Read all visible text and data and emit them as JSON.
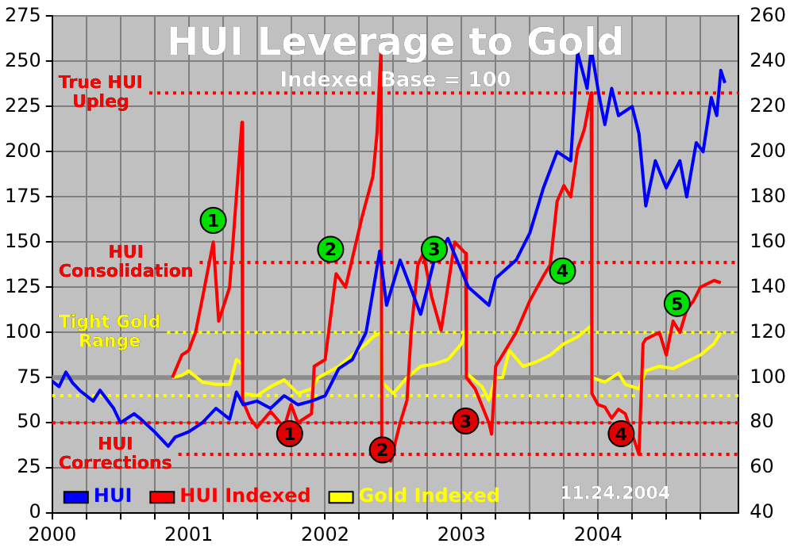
{
  "chart_data": {
    "type": "line",
    "title": "HUI Leverage to Gold",
    "subtitle": "Indexed Base = 100",
    "xlim": [
      2000,
      2005.03
    ],
    "xticks": [
      2000,
      {
        "value": 2000.25,
        "label": null
      },
      {
        "value": 2000.5,
        "label": null
      },
      {
        "value": 2000.75,
        "label": null
      },
      2001,
      {
        "value": 2001.25,
        "label": null
      },
      {
        "value": 2001.5,
        "label": null
      },
      {
        "value": 2001.75,
        "label": null
      },
      2002,
      {
        "value": 2002.25,
        "label": null
      },
      {
        "value": 2002.5,
        "label": null
      },
      {
        "value": 2002.75,
        "label": null
      },
      2003,
      {
        "value": 2003.25,
        "label": null
      },
      {
        "value": 2003.5,
        "label": null
      },
      {
        "value": 2003.75,
        "label": null
      },
      2004,
      {
        "value": 2004.25,
        "label": null
      },
      {
        "value": 2004.5,
        "label": null
      },
      {
        "value": 2004.75,
        "label": null
      }
    ],
    "ylim": [
      0,
      275
    ],
    "yticks": [
      0,
      25,
      50,
      75,
      100,
      125,
      150,
      175,
      200,
      225,
      250,
      275
    ],
    "y2lim": [
      40,
      260
    ],
    "y2ticks": [
      40,
      60,
      80,
      100,
      120,
      140,
      160,
      180,
      200,
      220,
      240,
      260
    ],
    "grid": true,
    "legend": "bottom left",
    "marker": "none",
    "series": [
      {
        "name": "HUI",
        "color": "#0000ff",
        "x": [
          2000.0,
          2000.05,
          2000.1,
          2000.15,
          2000.2,
          2000.3,
          2000.35,
          2000.45,
          2000.5,
          2000.6,
          2000.65,
          2000.75,
          2000.85,
          2000.9,
          2001.0,
          2001.1,
          2001.2,
          2001.3,
          2001.35,
          2001.4,
          2001.5,
          2001.6,
          2001.7,
          2001.8,
          2001.9,
          2002.0,
          2002.1,
          2002.2,
          2002.3,
          2002.4,
          2002.45,
          2002.55,
          2002.7,
          2002.8,
          2002.9,
          2003.05,
          2003.2,
          2003.25,
          2003.4,
          2003.5,
          2003.6,
          2003.7,
          2003.8,
          2003.85,
          2003.92,
          2003.95,
          2004.01,
          2004.05,
          2004.1,
          2004.15,
          2004.25,
          2004.3,
          2004.35,
          2004.42,
          2004.5,
          2004.6,
          2004.65,
          2004.72,
          2004.77,
          2004.83,
          2004.87,
          2004.9,
          2004.93
        ],
        "values": [
          73,
          70,
          78,
          72,
          68,
          62,
          68,
          58,
          50,
          55,
          52,
          45,
          37,
          42,
          45,
          50,
          58,
          52,
          67,
          60,
          62,
          58,
          65,
          60,
          62,
          65,
          80,
          85,
          100,
          145,
          115,
          140,
          110,
          140,
          152,
          125,
          115,
          130,
          140,
          155,
          180,
          200,
          195,
          255,
          235,
          257,
          230,
          215,
          235,
          220,
          225,
          210,
          170,
          195,
          180,
          195,
          175,
          205,
          200,
          230,
          220,
          245,
          238
        ]
      },
      {
        "name": "HUI Indexed",
        "axis": "y2",
        "color": "#ff0000",
        "x": [
          2000.88,
          2000.95,
          2001.0,
          2001.05,
          2001.1,
          2001.18,
          2001.22,
          2001.3,
          2001.39,
          2001.395,
          2001.45,
          2001.5,
          2001.6,
          2001.7,
          2001.75,
          2001.8,
          2001.85,
          2001.9,
          2001.92,
          2002.0,
          2002.08,
          2002.15,
          2002.27,
          2002.35,
          2002.38,
          2002.41,
          2002.415,
          2002.45,
          2002.48,
          2002.55,
          2002.6,
          2002.63,
          2002.68,
          2002.72,
          2002.78,
          2002.85,
          2002.95,
          2003.03,
          2003.035,
          2003.1,
          2003.2,
          2003.22,
          2003.25,
          2003.3,
          2003.4,
          2003.5,
          2003.6,
          2003.65,
          2003.7,
          2003.75,
          2003.8,
          2003.85,
          2003.9,
          2003.95,
          2003.955,
          2004.0,
          2004.05,
          2004.1,
          2004.15,
          2004.2,
          2004.25,
          2004.3,
          2004.33,
          2004.35,
          2004.45,
          2004.5,
          2004.55,
          2004.6,
          2004.65,
          2004.7,
          2004.75,
          2004.85,
          2004.9
        ],
        "values": [
          100,
          110,
          112,
          120,
          135,
          160,
          125,
          140,
          213,
          90,
          82,
          78,
          85,
          78,
          88,
          80,
          82,
          84,
          105,
          108,
          146,
          140,
          171,
          189,
          208,
          246,
          72,
          68,
          63,
          80,
          90,
          120,
          150,
          155,
          136,
          121,
          160,
          155,
          100,
          95,
          80,
          75,
          105,
          110,
          120,
          134,
          145,
          150,
          178,
          185,
          180,
          201,
          210,
          226,
          93,
          88,
          87,
          82,
          86,
          84,
          75,
          66,
          115,
          117,
          120,
          110,
          125,
          120,
          130,
          134,
          140,
          143,
          142
        ]
      },
      {
        "name": "Gold Indexed",
        "axis": "y2",
        "color": "#ffff00",
        "x": [
          2000.88,
          2000.95,
          2001.0,
          2001.1,
          2001.2,
          2001.3,
          2001.35,
          2001.39,
          2001.395,
          2001.5,
          2001.6,
          2001.7,
          2001.8,
          2001.9,
          2001.95,
          2002.1,
          2002.2,
          2002.3,
          2002.35,
          2002.41,
          2002.415,
          2002.5,
          2002.6,
          2002.7,
          2002.8,
          2002.9,
          2003.0,
          2003.03,
          2003.035,
          2003.15,
          2003.2,
          2003.25,
          2003.3,
          2003.35,
          2003.45,
          2003.55,
          2003.65,
          2003.75,
          2003.85,
          2003.95,
          2003.955,
          2004.05,
          2004.15,
          2004.2,
          2004.3,
          2004.35,
          2004.45,
          2004.55,
          2004.65,
          2004.75,
          2004.85,
          2004.9
        ],
        "values": [
          100,
          101,
          103,
          98,
          97,
          97,
          108,
          106,
          93,
          92,
          96,
          99,
          93,
          95,
          100,
          105,
          110,
          115,
          118,
          120,
          98,
          93,
          100,
          105,
          106,
          108,
          115,
          121,
          102,
          96,
          90,
          100,
          100,
          112,
          105,
          107,
          110,
          115,
          118,
          123,
          100,
          98,
          102,
          97,
          95,
          103,
          105,
          104,
          107,
          110,
          115,
          120
        ]
      },
      {
        "type": "scatter",
        "marker": "circle",
        "color": "#00e000",
        "x": [
          2001.18,
          2002.04,
          2002.8,
          2003.74,
          2004.58
        ],
        "values": [
          162,
          146,
          146,
          134,
          116
        ]
      },
      {
        "type": "scatter",
        "marker": "circle",
        "color": "#e00000",
        "x": [
          2001.74,
          2002.42,
          2003.03,
          2004.17
        ],
        "values": [
          44,
          35,
          51,
          44
        ]
      }
    ],
    "ref_lines": [
      {
        "axis": "y2",
        "value": 100,
        "color": "#8c8c8c",
        "line_style": "solid"
      },
      {
        "axis": "y2",
        "value": 226,
        "color": "#ff0000",
        "line_style": "dotted",
        "label": "True HUI Upleg"
      },
      {
        "axis": "y2",
        "value": 151,
        "color": "#ff0000",
        "line_style": "dotted",
        "label": "HUI Consolidation"
      },
      {
        "axis": "y2",
        "value": 120,
        "color": "#ffff00",
        "line_style": "dotted",
        "label": "Tight Gold Range"
      },
      {
        "axis": "y2",
        "value": 92,
        "color": "#ffff00",
        "line_style": "dotted"
      },
      {
        "axis": "y2",
        "value": 80,
        "color": "#ff0000",
        "line_style": "dotted"
      },
      {
        "axis": "y2",
        "value": 66,
        "color": "#ff0000",
        "line_style": "dotted",
        "label": "HUI Corrections"
      }
    ],
    "annotations": [
      {
        "text": "1",
        "x": 2001.18,
        "y": 162
      },
      {
        "text": "2",
        "x": 2002.04,
        "y": 146
      },
      {
        "text": "3",
        "x": 2002.8,
        "y": 146
      },
      {
        "text": "4",
        "x": 2003.74,
        "y": 134
      },
      {
        "text": "5",
        "x": 2004.58,
        "y": 116
      },
      {
        "text": "1",
        "x": 2001.74,
        "y": 44
      },
      {
        "text": "2",
        "x": 2002.42,
        "y": 35
      },
      {
        "text": "3",
        "x": 2003.03,
        "y": 51
      },
      {
        "text": "4",
        "x": 2004.17,
        "y": 44
      },
      "11.24.2004"
    ]
  }
}
